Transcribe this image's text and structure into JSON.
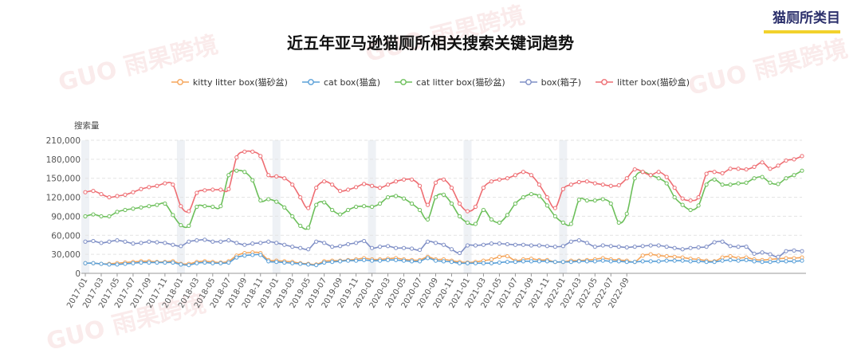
{
  "header": {
    "category_title": "猫厕所类目",
    "chart_title": "近五年亚马逊猫厕所相关搜索关键词趋势"
  },
  "watermarks": [
    "GUO 雨果跨境",
    "GUO 雨果跨境",
    "GUO 雨果跨境",
    "GUO 雨果跨境"
  ],
  "colors": {
    "kitty": "#f5a55a",
    "cat_box": "#5aa0d8",
    "cat_litter_box": "#6cbf5a",
    "box": "#7f8fc6",
    "litter_box": "#ee6d72",
    "axis": "#999999",
    "grid": "#e3e3e3",
    "band": "#eef1f5",
    "category_underline": "#f2d22c"
  },
  "chart_data": {
    "type": "line",
    "title": "近五年亚马逊猫厕所相关搜索关键词趋势",
    "ylabel": "搜索量",
    "ylim": [
      0,
      210000
    ],
    "yticks": [
      "0",
      "30,000",
      "60,000",
      "90,000",
      "120,000",
      "150,000",
      "180,000",
      "210,000"
    ],
    "ytick_values": [
      0,
      30000,
      60000,
      90000,
      120000,
      150000,
      180000,
      210000
    ],
    "xlabels_shown": [
      "2017-01",
      "2017-03",
      "2017-05",
      "2017-07",
      "2017-09",
      "2017-11",
      "2018-01",
      "2018-03",
      "2018-05",
      "2018-07",
      "2018-09",
      "2018-11",
      "2019-01",
      "2019-03",
      "2019-05",
      "2019-07",
      "2019-09",
      "2019-11",
      "2020-01",
      "2020-03",
      "2020-05",
      "2020-07",
      "2020-09",
      "2020-11",
      "2021-01",
      "2021-03",
      "2021-05",
      "2021-07",
      "2021-09",
      "2021-11",
      "2022-01",
      "2022-03",
      "2022-05",
      "2022-07",
      "2022-09"
    ],
    "x_start": "2017-01",
    "x_end": "2022-09",
    "highlight_months": [
      "2017-01",
      "2018-01",
      "2019-01",
      "2020-01",
      "2021-01",
      "2022-01"
    ],
    "grid": true,
    "legend_position": "top-center",
    "series": [
      {
        "name": "kitty litter box(猫砂盆)",
        "color_key": "kitty",
        "values": [
          16000,
          16000,
          15000,
          15000,
          16000,
          17000,
          18000,
          19000,
          19000,
          18000,
          18000,
          19000,
          15000,
          15000,
          18000,
          19000,
          18000,
          17000,
          19000,
          28000,
          32000,
          33000,
          32000,
          21000,
          20000,
          19000,
          18000,
          16000,
          15000,
          14000,
          19000,
          20000,
          20000,
          21000,
          22000,
          24000,
          22000,
          22000,
          23000,
          24000,
          22000,
          21000,
          21000,
          26000,
          22000,
          22000,
          20000,
          18000,
          17000,
          18000,
          20000,
          22000,
          26000,
          27000,
          20000,
          22000,
          23000,
          21000,
          21000,
          18000,
          18000,
          20000,
          20000,
          21000,
          22000,
          24000,
          22000,
          21000,
          20000,
          18000,
          28000,
          30000,
          28000,
          27000,
          26000,
          25000,
          23000,
          22000,
          20000,
          19000,
          25000,
          27000,
          24000,
          25000,
          22000,
          21000,
          22000,
          23000,
          24000,
          24000,
          25000
        ]
      },
      {
        "name": "cat box(猫盒)",
        "color_key": "cat_box",
        "values": [
          16000,
          16000,
          15000,
          14000,
          14000,
          15000,
          16000,
          17000,
          17000,
          17000,
          17000,
          17000,
          14000,
          13000,
          16000,
          17000,
          16000,
          16000,
          17000,
          25000,
          28000,
          29000,
          29000,
          19000,
          18000,
          17000,
          16000,
          15000,
          14000,
          13000,
          17000,
          18000,
          19000,
          20000,
          20000,
          21000,
          20000,
          20000,
          21000,
          21000,
          20000,
          19000,
          19000,
          24000,
          20000,
          19000,
          18000,
          16000,
          16000,
          16000,
          16000,
          16000,
          17000,
          18000,
          18000,
          19000,
          19000,
          19000,
          19000,
          18000,
          18000,
          18000,
          19000,
          19000,
          19000,
          20000,
          19000,
          19000,
          18000,
          18000,
          19000,
          19000,
          19000,
          20000,
          20000,
          20000,
          19000,
          19000,
          18000,
          18000,
          20000,
          21000,
          20000,
          21000,
          19000,
          18000,
          18000,
          19000,
          19000,
          19000,
          20000
        ]
      },
      {
        "name": "cat litter box(猫砂盆)",
        "color_key": "cat_litter_box",
        "values": [
          90000,
          93000,
          90000,
          90000,
          97000,
          100000,
          102000,
          104000,
          106000,
          108000,
          110000,
          92000,
          76000,
          75000,
          105000,
          106000,
          105000,
          106000,
          155000,
          162000,
          160000,
          147000,
          115000,
          117000,
          113000,
          104000,
          90000,
          75000,
          72000,
          108000,
          112000,
          100000,
          93000,
          100000,
          105000,
          106000,
          105000,
          110000,
          120000,
          122000,
          118000,
          110000,
          100000,
          85000,
          120000,
          124000,
          110000,
          90000,
          80000,
          78000,
          100000,
          85000,
          80000,
          92000,
          110000,
          120000,
          125000,
          122000,
          107000,
          90000,
          80000,
          78000,
          116000,
          115000,
          115000,
          117000,
          110000,
          80000,
          94000,
          150000,
          160000,
          155000,
          150000,
          142000,
          120000,
          108000,
          100000,
          107000,
          140000,
          148000,
          140000,
          140000,
          142000,
          143000,
          150000,
          152000,
          143000,
          141000,
          150000,
          155000,
          162000
        ]
      },
      {
        "name": "box(箱子)",
        "color_key": "box",
        "values": [
          50000,
          51000,
          48000,
          50000,
          52000,
          50000,
          47000,
          48000,
          50000,
          49000,
          48000,
          45000,
          43000,
          50000,
          52000,
          53000,
          50000,
          50000,
          52000,
          48000,
          45000,
          47000,
          48000,
          50000,
          48000,
          45000,
          42000,
          40000,
          38000,
          50000,
          48000,
          42000,
          43000,
          46000,
          48000,
          51000,
          40000,
          42000,
          43000,
          40000,
          40000,
          39000,
          37000,
          50000,
          48000,
          45000,
          38000,
          32000,
          44000,
          44000,
          45000,
          47000,
          47000,
          46000,
          45000,
          45000,
          44000,
          44000,
          43000,
          42000,
          43000,
          50000,
          52000,
          48000,
          42000,
          44000,
          43000,
          42000,
          41000,
          42000,
          43000,
          44000,
          44000,
          42000,
          40000,
          38000,
          40000,
          41000,
          42000,
          49000,
          50000,
          43000,
          42000,
          42000,
          31000,
          33000,
          30000,
          26000,
          35000,
          36000,
          35000
        ]
      },
      {
        "name": "litter box(猫砂盒)",
        "color_key": "litter_box",
        "values": [
          128000,
          130000,
          125000,
          120000,
          122000,
          124000,
          128000,
          133000,
          136000,
          138000,
          142000,
          140000,
          106000,
          98000,
          127000,
          131000,
          132000,
          132000,
          133000,
          183000,
          192000,
          192000,
          185000,
          155000,
          153000,
          150000,
          140000,
          120000,
          103000,
          135000,
          145000,
          140000,
          130000,
          132000,
          136000,
          141000,
          138000,
          135000,
          140000,
          145000,
          148000,
          148000,
          138000,
          108000,
          143000,
          148000,
          135000,
          110000,
          98000,
          105000,
          135000,
          145000,
          148000,
          150000,
          155000,
          160000,
          155000,
          140000,
          120000,
          103000,
          133000,
          140000,
          144000,
          145000,
          142000,
          140000,
          138000,
          139000,
          150000,
          164000,
          160000,
          155000,
          160000,
          152000,
          135000,
          118000,
          115000,
          120000,
          157000,
          160000,
          158000,
          165000,
          165000,
          164000,
          168000,
          175000,
          165000,
          170000,
          178000,
          180000,
          185000
        ]
      }
    ]
  }
}
